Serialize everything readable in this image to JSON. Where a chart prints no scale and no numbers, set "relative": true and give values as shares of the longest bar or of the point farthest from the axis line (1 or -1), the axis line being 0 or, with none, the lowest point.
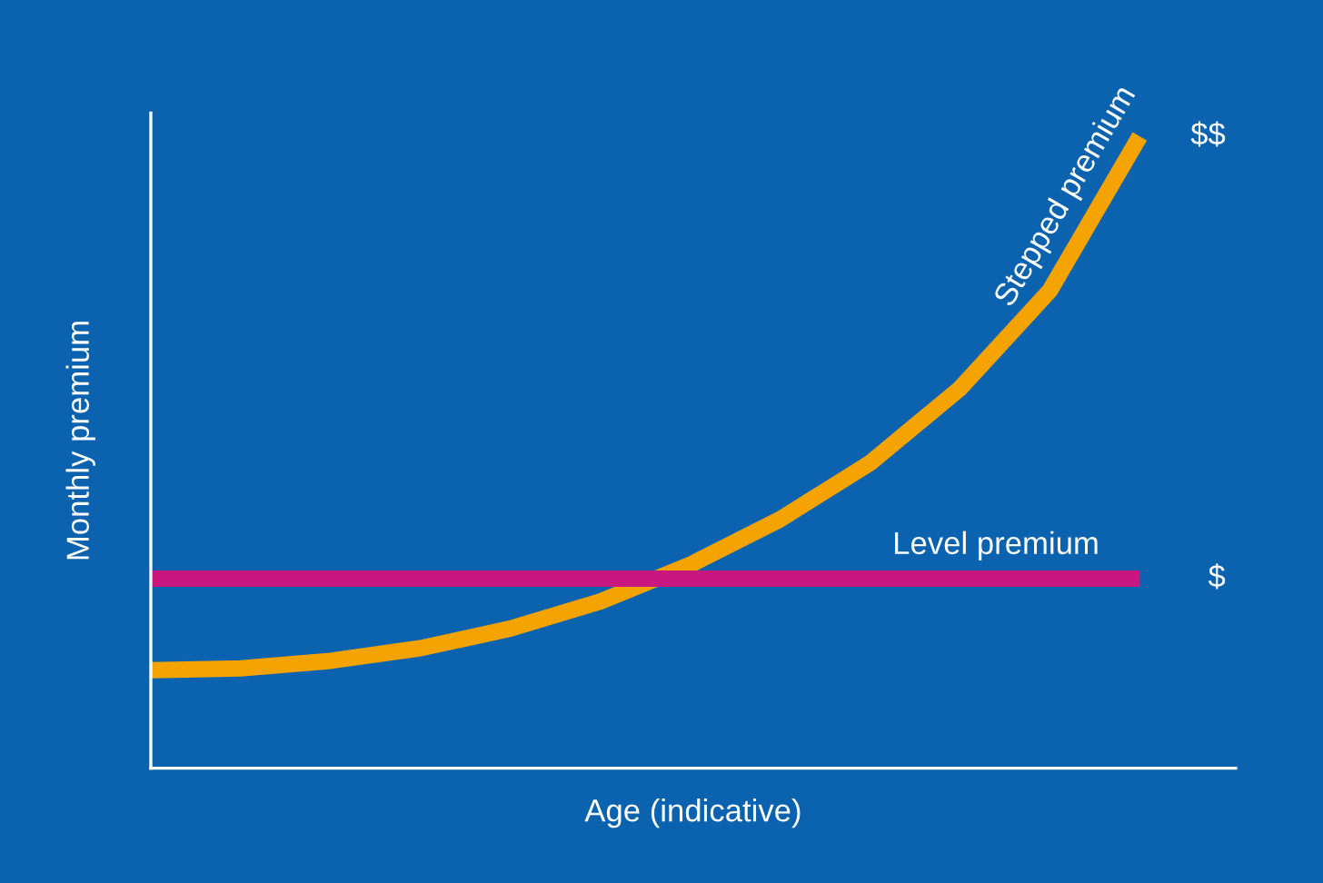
{
  "chart_data": {
    "type": "line",
    "relative": true,
    "xlabel": "Age (indicative)",
    "ylabel": "Monthly premium",
    "marker": "none",
    "line_style": "solid",
    "categories": [
      null,
      null,
      null,
      null,
      null,
      null,
      null,
      null,
      null,
      null,
      null,
      null
    ],
    "series": [
      {
        "name": "Stepped premium",
        "color": "#f5a300",
        "values": [
          0.155,
          0.158,
          0.17,
          0.19,
          0.221,
          0.264,
          0.322,
          0.394,
          0.483,
          0.601,
          0.756,
          1
        ]
      },
      {
        "name": "Level premium",
        "color": "#c8177f",
        "values": [
          0.3,
          0.3,
          0.3,
          0.3,
          0.3,
          0.3,
          0.3,
          0.3,
          0.3,
          0.3,
          0.3,
          0.3
        ]
      }
    ],
    "annotations": [
      "$$",
      "$"
    ]
  }
}
